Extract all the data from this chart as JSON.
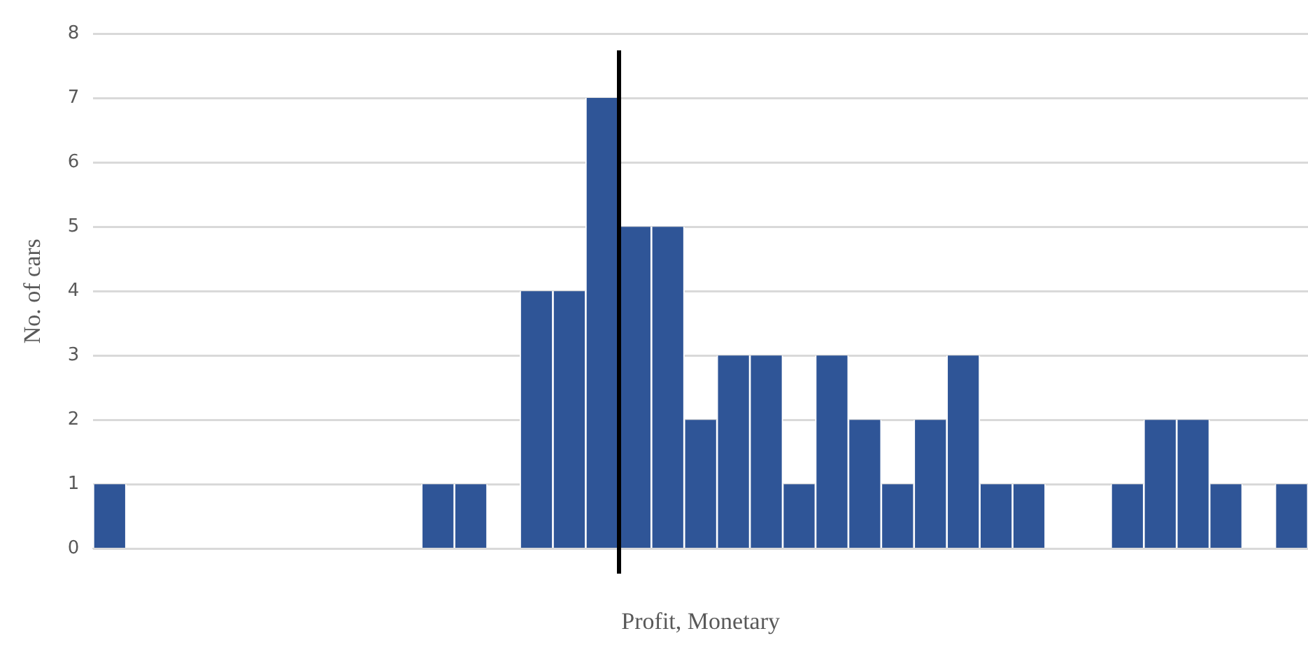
{
  "chart_data": {
    "type": "bar",
    "xlabel": "Profit, Monetary",
    "ylabel": "No. of cars",
    "categories": [
      null,
      null,
      null,
      null,
      null,
      null,
      null,
      null,
      null,
      null,
      null,
      null,
      null,
      null,
      null,
      null,
      null,
      null,
      null,
      null,
      null,
      null,
      null,
      null,
      null,
      null,
      null,
      null,
      null,
      null,
      null,
      null,
      null,
      null,
      null,
      null,
      null
    ],
    "values": [
      1,
      0,
      0,
      0,
      0,
      0,
      0,
      0,
      0,
      0,
      1,
      1,
      0,
      4,
      4,
      7,
      5,
      5,
      2,
      3,
      3,
      1,
      3,
      2,
      1,
      2,
      3,
      1,
      1,
      0,
      0,
      1,
      2,
      2,
      1,
      0,
      1
    ],
    "color": "#2f5597",
    "ylim": [
      0,
      8
    ],
    "yticks": [
      0,
      1,
      2,
      3,
      4,
      5,
      6,
      7,
      8
    ],
    "grid": "y"
  }
}
